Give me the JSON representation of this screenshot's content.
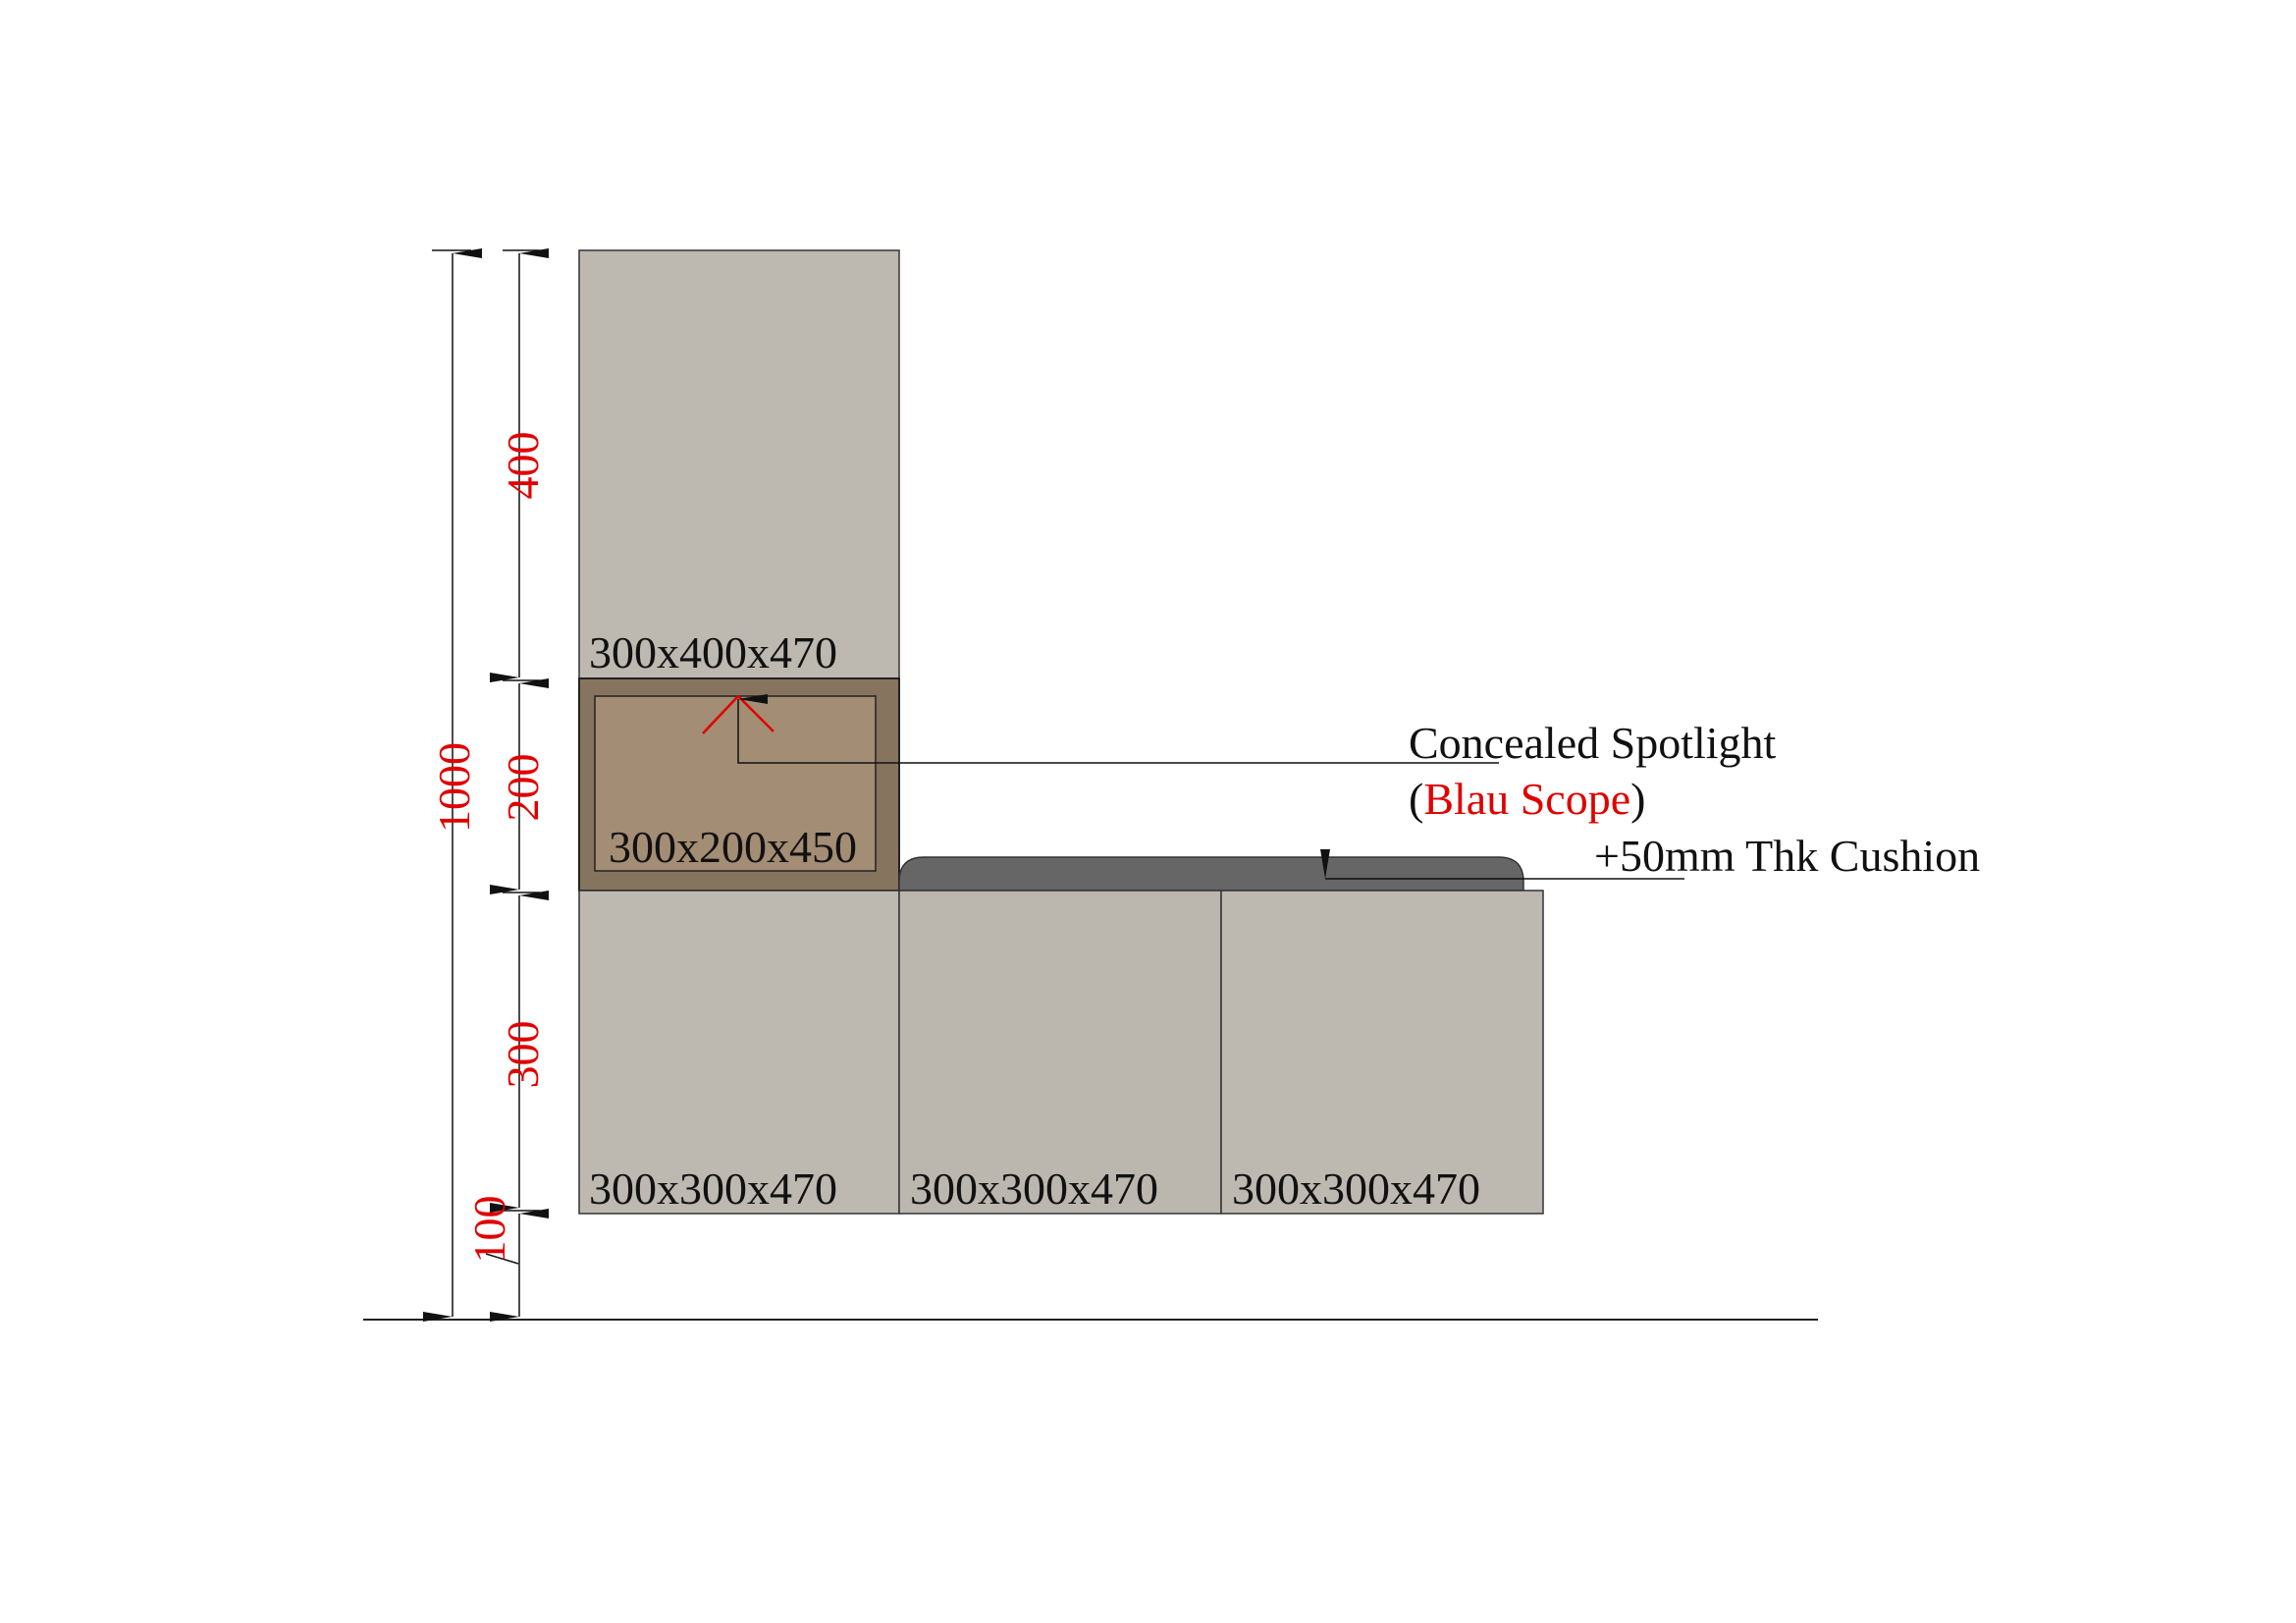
{
  "colors": {
    "cabinet": "#bdb8b0",
    "niche_outer": "#86745e",
    "niche_inner": "#a38d74",
    "cushion": "#666667",
    "dimension_text": "#e00000",
    "line": "#111111"
  },
  "cabinets": {
    "upper": "300x400x470",
    "niche": "300x200x450",
    "bottom": [
      "300x300x470",
      "300x300x470",
      "300x300x470"
    ]
  },
  "dimensions": {
    "overall": "1000",
    "segments": [
      "400",
      "200",
      "300",
      "100"
    ]
  },
  "annotations": {
    "spotlight_title": "Concealed Spotlight",
    "spotlight_paren_open": "(",
    "spotlight_scope": "Blau Scope",
    "spotlight_paren_close": ")",
    "cushion": "+50mm Thk Cushion"
  }
}
